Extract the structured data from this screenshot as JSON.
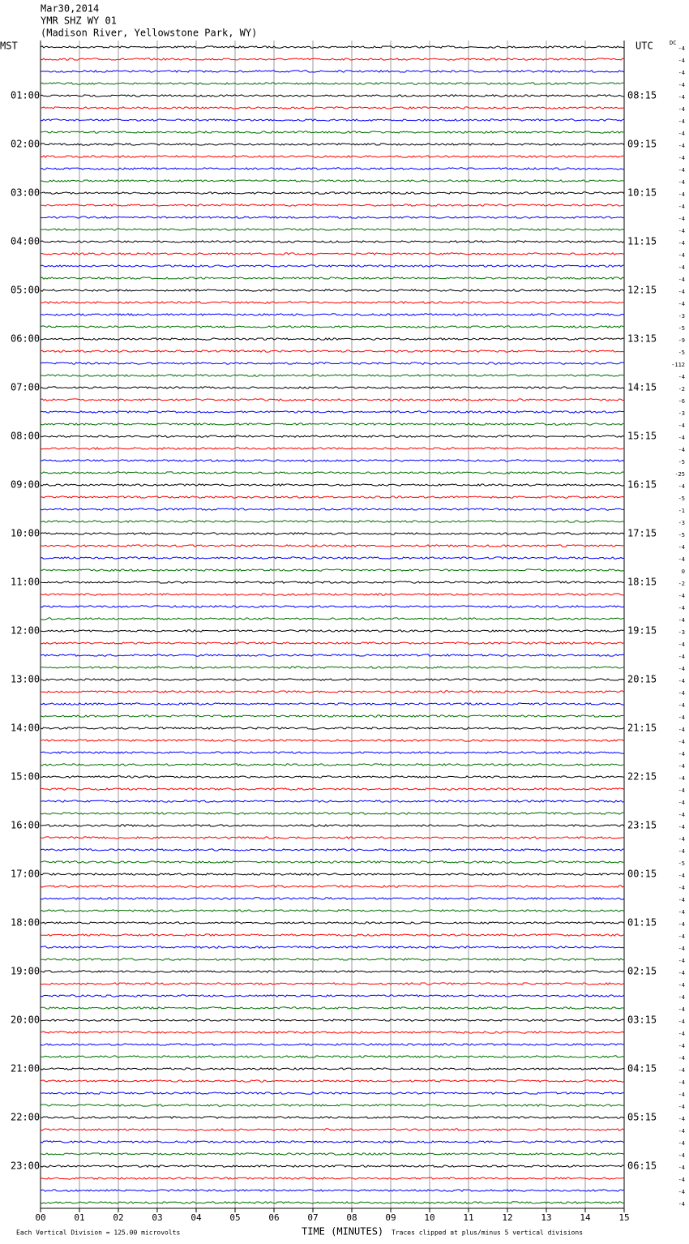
{
  "header": {
    "date": "Mar30,2014",
    "station": "YMR SHZ WY 01",
    "location": "(Madison River, Yellowstone Park, WY)"
  },
  "left_axis": {
    "title": "MST",
    "labels": [
      "01:00",
      "02:00",
      "03:00",
      "04:00",
      "05:00",
      "06:00",
      "07:00",
      "08:00",
      "09:00",
      "10:00",
      "11:00",
      "12:00",
      "13:00",
      "14:00",
      "15:00",
      "16:00",
      "17:00",
      "18:00",
      "19:00",
      "20:00",
      "21:00",
      "22:00",
      "23:00"
    ]
  },
  "right_axis": {
    "title": "UTC",
    "labels": [
      "08:15",
      "09:15",
      "10:15",
      "11:15",
      "12:15",
      "13:15",
      "14:15",
      "15:15",
      "16:15",
      "17:15",
      "18:15",
      "19:15",
      "20:15",
      "21:15",
      "22:15",
      "23:15",
      "00:15",
      "01:15",
      "02:15",
      "03:15",
      "04:15",
      "05:15",
      "06:15"
    ]
  },
  "dc_offsets": {
    "title": "DC",
    "values": [
      -4,
      -4,
      -4,
      -4,
      -4,
      -4,
      -4,
      -4,
      -4,
      -4,
      -4,
      -4,
      -4,
      -4,
      -4,
      -4,
      -4,
      -4,
      -4,
      -4,
      -4,
      -4,
      -3,
      -5,
      -9,
      -5,
      -112,
      -4,
      -2,
      -6,
      -3,
      -4,
      -4,
      -4,
      -5,
      -25,
      -4,
      -5,
      -1,
      -3,
      -5,
      -4,
      -4,
      0,
      -2,
      -4,
      -4,
      -4,
      -3,
      -4,
      -4,
      -4,
      -4,
      -4,
      -4,
      -4,
      -4,
      -4,
      -4,
      -4,
      -4,
      -4,
      -4,
      -4,
      -4,
      -4,
      -4,
      -5,
      -4,
      -4,
      -4,
      -4,
      -4,
      -4,
      -4,
      -4,
      -4,
      -4,
      -4,
      -4,
      -4,
      -4,
      -4,
      -4,
      -4,
      -4,
      -4,
      -4,
      -4,
      -4,
      -4,
      -4,
      -4,
      -4,
      -4,
      -4
    ]
  },
  "x_axis": {
    "title": "TIME (MINUTES)",
    "ticks": [
      "00",
      "01",
      "02",
      "03",
      "04",
      "05",
      "06",
      "07",
      "08",
      "09",
      "10",
      "11",
      "12",
      "13",
      "14",
      "15"
    ]
  },
  "footer": {
    "scale_note": "Each Vertical Division =  125.00 microvolts",
    "clip_note": "Traces clipped at plus/minus 5 vertical divisions"
  }
}
